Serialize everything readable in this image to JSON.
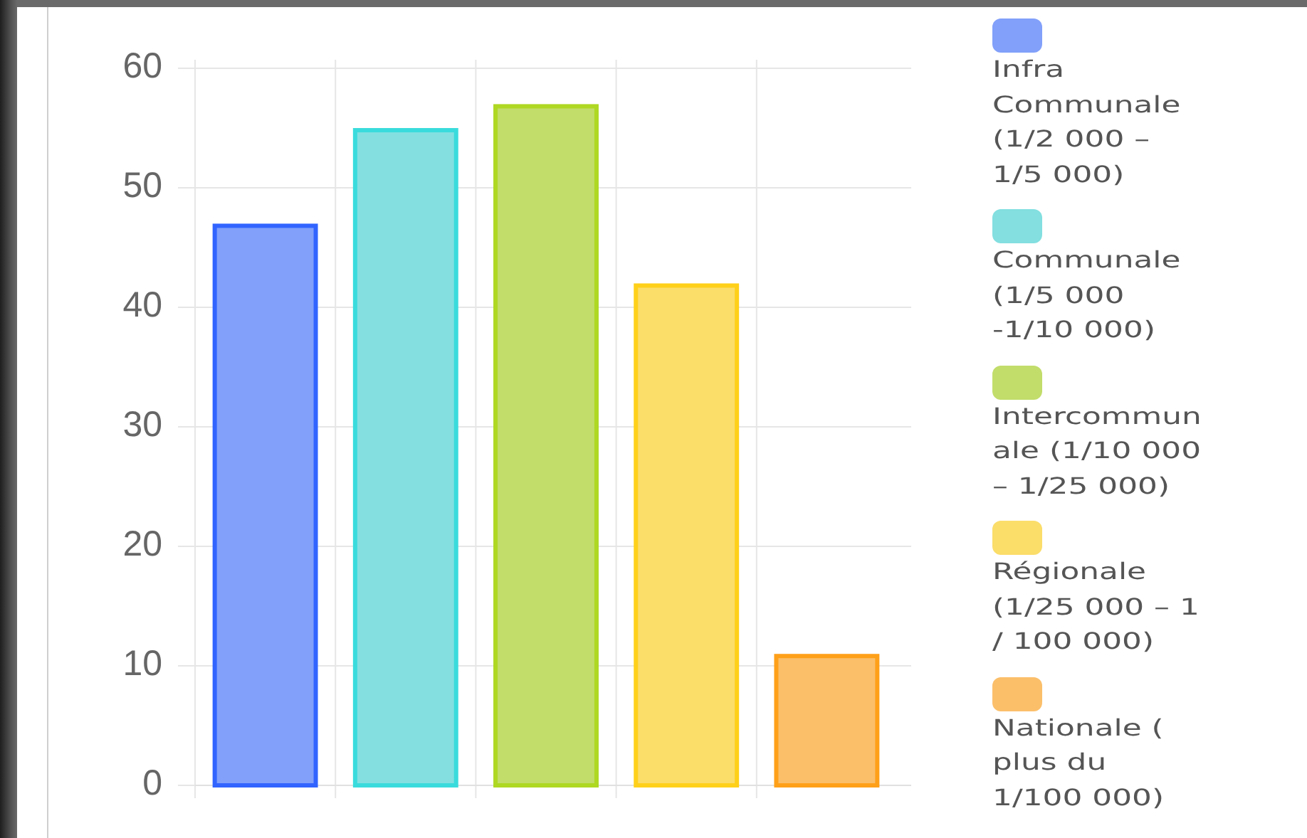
{
  "chart_data": {
    "type": "bar",
    "categories": [
      null,
      null,
      null,
      null,
      null
    ],
    "series": [
      {
        "name": "Infra Communale (1/2 000 – 1/5 000)",
        "color": "#82a0fa",
        "values": [
          47,
          null,
          null,
          null,
          null
        ]
      },
      {
        "name": "Communale (1/5 000 -1/10 000)",
        "color": "#83dfe0",
        "values": [
          null,
          55,
          null,
          null,
          null
        ]
      },
      {
        "name": "Intercommunale (1/10 000 – 1/25 000)",
        "color": "#c2dd6a",
        "values": [
          null,
          null,
          57,
          null,
          null
        ]
      },
      {
        "name": "Régionale (1/25 000 – 1 / 100 000)",
        "color": "#fbdd6a",
        "values": [
          null,
          null,
          null,
          42,
          null
        ]
      },
      {
        "name": "Nationale ( plus du 1/100 000)",
        "color": "#fbbf6a",
        "values": [
          null,
          null,
          null,
          null,
          11
        ]
      }
    ],
    "ylim": [
      0,
      60
    ],
    "yticks": [
      0,
      10,
      20,
      30,
      40,
      50,
      60
    ],
    "grid": true,
    "legend": "right"
  }
}
